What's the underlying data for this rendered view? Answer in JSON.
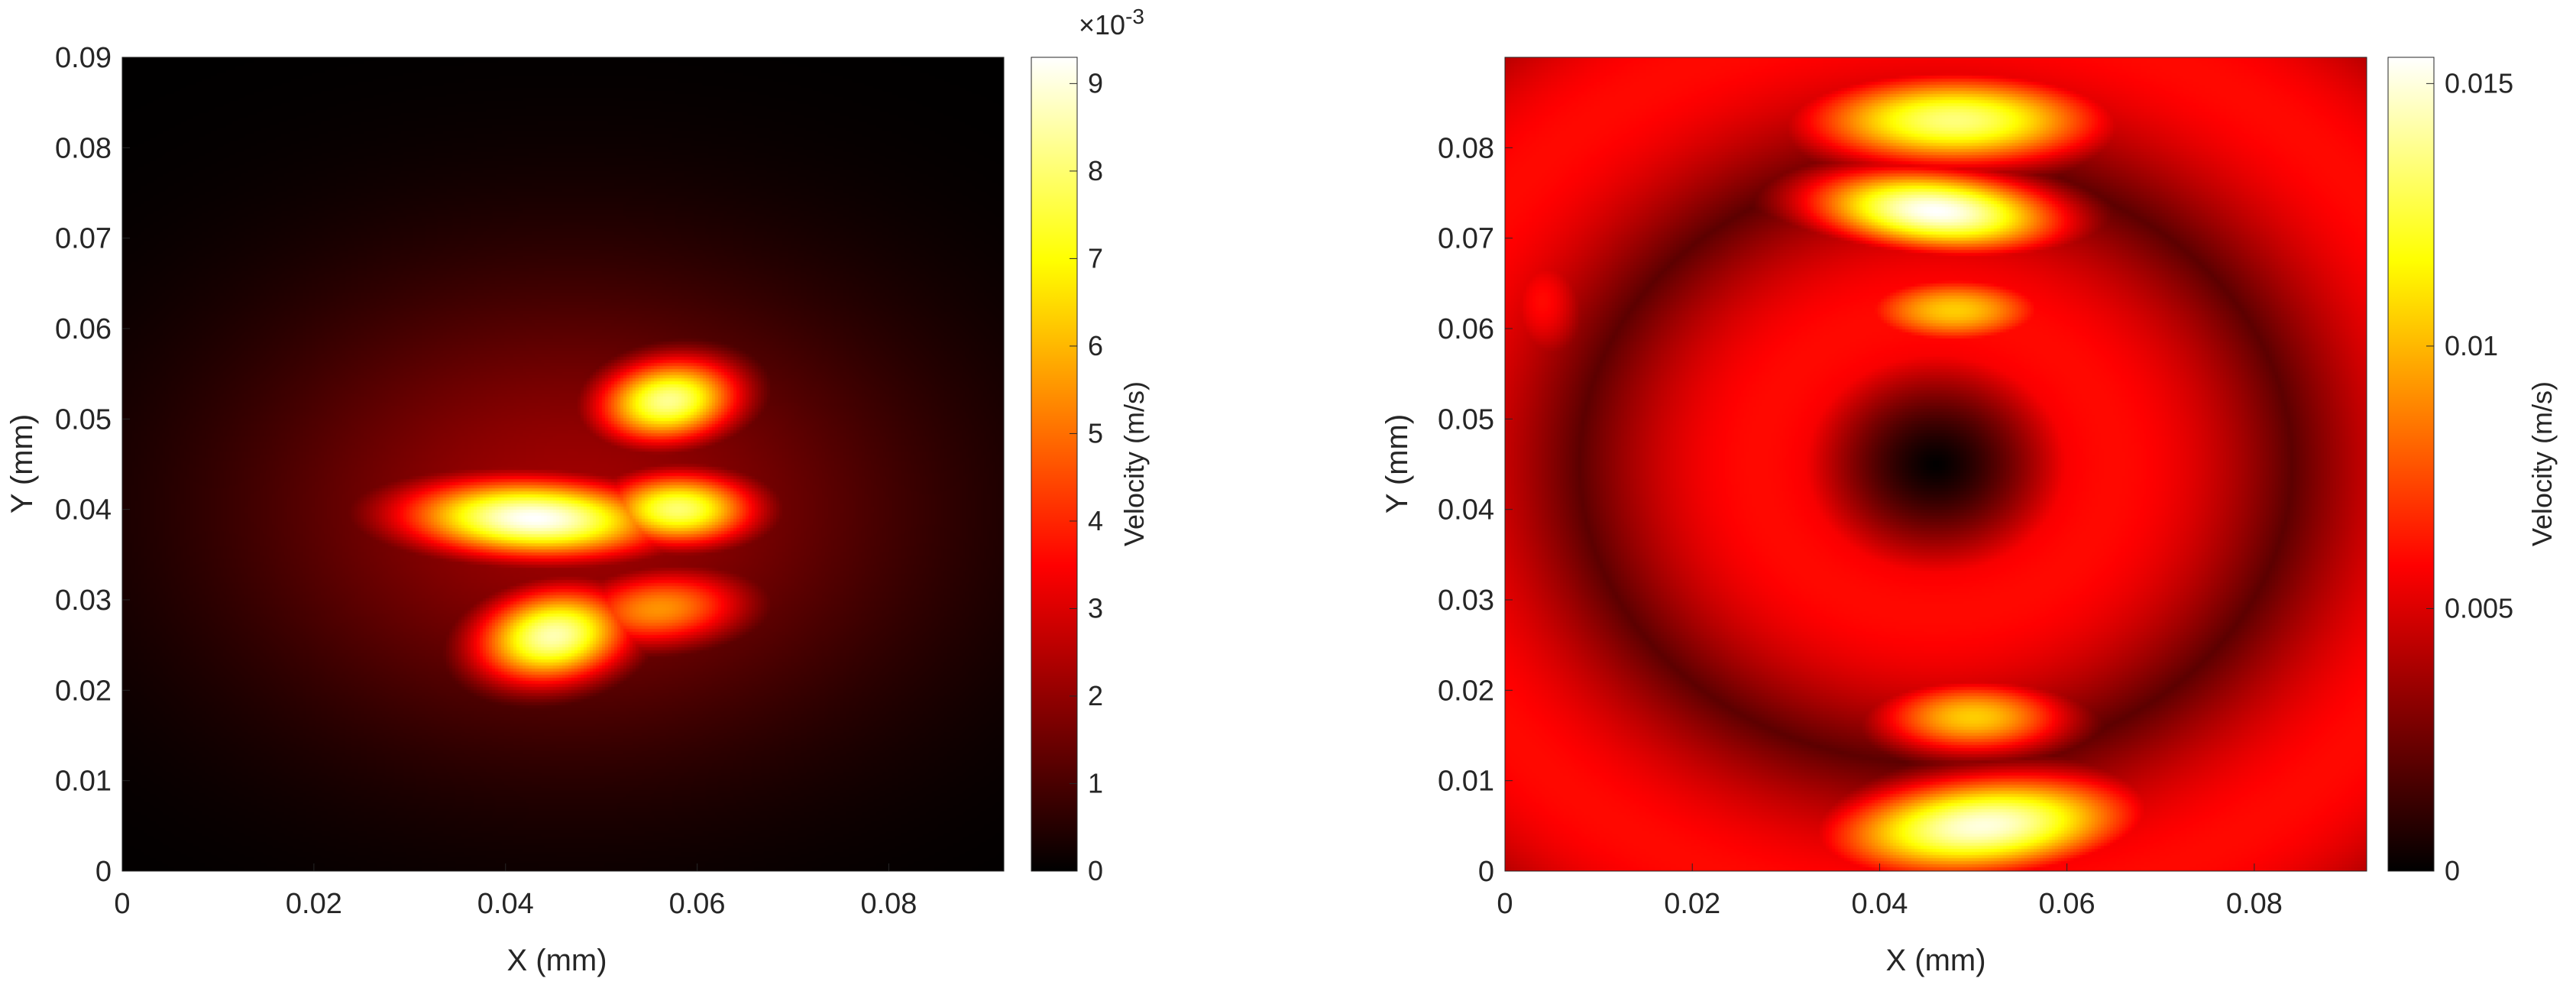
{
  "chart_data": [
    {
      "type": "heatmap",
      "title": "",
      "xlabel": "X (mm)",
      "ylabel": "Y (mm)",
      "xlim": [
        0,
        0.092
      ],
      "ylim": [
        0,
        0.09
      ],
      "xticks": [
        0,
        0.02,
        0.04,
        0.06,
        0.08
      ],
      "xtick_labels": [
        "0",
        "0.02",
        "0.04",
        "0.06",
        "0.08"
      ],
      "yticks": [
        0,
        0.01,
        0.02,
        0.03,
        0.04,
        0.05,
        0.06,
        0.07,
        0.08,
        0.09
      ],
      "ytick_labels": [
        "0",
        "0.01",
        "0.02",
        "0.03",
        "0.04",
        "0.05",
        "0.06",
        "0.07",
        "0.08",
        "0.09"
      ],
      "colormap": "hot",
      "colorbar": {
        "label": "Velocity (m/s)",
        "exponent_label": "×10",
        "exponent": "-3",
        "range": [
          0,
          9.3
        ],
        "ticks": [
          0,
          1,
          2,
          3,
          4,
          5,
          6,
          7,
          8,
          9
        ],
        "tick_labels": [
          "0",
          "1",
          "2",
          "3",
          "4",
          "5",
          "6",
          "7",
          "8",
          "9"
        ]
      },
      "features": [
        {
          "x": 0.043,
          "y": 0.039,
          "sx": 0.01,
          "sy": 0.0032,
          "amp": 9.3,
          "rot": -2
        },
        {
          "x": 0.058,
          "y": 0.04,
          "sx": 0.006,
          "sy": 0.003,
          "amp": 8.0,
          "rot": 0
        },
        {
          "x": 0.057,
          "y": 0.052,
          "sx": 0.0055,
          "sy": 0.0034,
          "amp": 8.3,
          "rot": 8
        },
        {
          "x": 0.045,
          "y": 0.026,
          "sx": 0.006,
          "sy": 0.0038,
          "amp": 8.6,
          "rot": 10
        },
        {
          "x": 0.056,
          "y": 0.029,
          "sx": 0.007,
          "sy": 0.0032,
          "amp": 5.5,
          "rot": 5
        },
        {
          "x": 0.047,
          "y": 0.04,
          "sx": 0.025,
          "sy": 0.018,
          "amp": 2.2,
          "rot": 0
        }
      ]
    },
    {
      "type": "heatmap",
      "title": "",
      "xlabel": "X (mm)",
      "ylabel": "Y (mm)",
      "xlim": [
        0,
        0.092
      ],
      "ylim": [
        0,
        0.09
      ],
      "xticks": [
        0,
        0.02,
        0.04,
        0.06,
        0.08
      ],
      "xtick_labels": [
        "0",
        "0.02",
        "0.04",
        "0.06",
        "0.08"
      ],
      "yticks": [
        0,
        0.01,
        0.02,
        0.03,
        0.04,
        0.05,
        0.06,
        0.07,
        0.08
      ],
      "ytick_labels": [
        "0",
        "0.01",
        "0.02",
        "0.03",
        "0.04",
        "0.05",
        "0.06",
        "0.07",
        "0.08"
      ],
      "colormap": "hot",
      "colorbar": {
        "label": "Velocity (m/s)",
        "exponent_label": "",
        "exponent": "",
        "range": [
          0,
          0.0155
        ],
        "ticks": [
          0,
          0.005,
          0.01,
          0.015
        ],
        "tick_labels": [
          "0",
          "0.005",
          "0.01",
          "0.015"
        ]
      },
      "features": [
        {
          "x": 0.048,
          "y": 0.083,
          "sx": 0.012,
          "sy": 0.0038,
          "amp": 0.0135,
          "rot": 0
        },
        {
          "x": 0.046,
          "y": 0.073,
          "sx": 0.01,
          "sy": 0.0033,
          "amp": 0.0155,
          "rot": -5
        },
        {
          "x": 0.048,
          "y": 0.062,
          "sx": 0.008,
          "sy": 0.003,
          "amp": 0.0105,
          "rot": 0
        },
        {
          "x": 0.05,
          "y": 0.017,
          "sx": 0.008,
          "sy": 0.0032,
          "amp": 0.0105,
          "rot": 0
        },
        {
          "x": 0.051,
          "y": 0.005,
          "sx": 0.012,
          "sy": 0.004,
          "amp": 0.015,
          "rot": 5
        },
        {
          "x": 0.046,
          "y": 0.045,
          "sx": 0.06,
          "sy": 0.06,
          "amp": 0.006,
          "rot": 0
        },
        {
          "x": 0.004,
          "y": 0.063,
          "sx": 0.004,
          "sy": 0.006,
          "amp": 0.006,
          "rot": 0
        }
      ]
    }
  ]
}
